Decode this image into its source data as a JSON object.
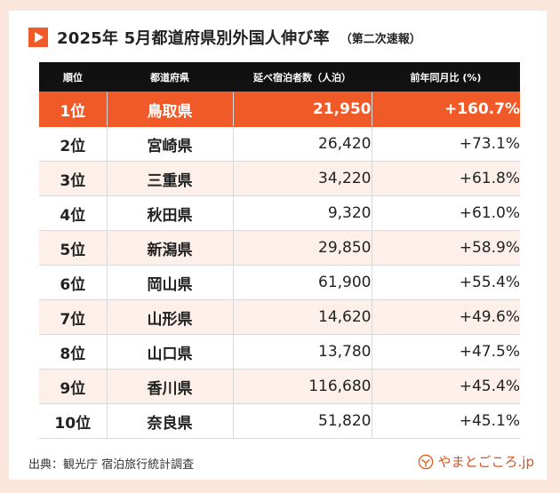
{
  "title": {
    "main": "2025年 5月都道府県別外国人伸び率",
    "sub": "（第二次速報）"
  },
  "table": {
    "headers": [
      "順位",
      "都道府県",
      "延べ宿泊者数（人泊）",
      "前年同月比 (%)"
    ],
    "rows": [
      {
        "rank": "1位",
        "pref": "鳥取県",
        "stays": "21,950",
        "yoy": "+160.7%"
      },
      {
        "rank": "2位",
        "pref": "宮崎県",
        "stays": "26,420",
        "yoy": "+73.1%"
      },
      {
        "rank": "3位",
        "pref": "三重県",
        "stays": "34,220",
        "yoy": "+61.8%"
      },
      {
        "rank": "4位",
        "pref": "秋田県",
        "stays": "9,320",
        "yoy": "+61.0%"
      },
      {
        "rank": "5位",
        "pref": "新潟県",
        "stays": "29,850",
        "yoy": "+58.9%"
      },
      {
        "rank": "6位",
        "pref": "岡山県",
        "stays": "61,900",
        "yoy": "+55.4%"
      },
      {
        "rank": "7位",
        "pref": "山形県",
        "stays": "14,620",
        "yoy": "+49.6%"
      },
      {
        "rank": "8位",
        "pref": "山口県",
        "stays": "13,780",
        "yoy": "+47.5%"
      },
      {
        "rank": "9位",
        "pref": "香川県",
        "stays": "116,680",
        "yoy": "+45.4%"
      },
      {
        "rank": "10位",
        "pref": "奈良県",
        "stays": "51,820",
        "yoy": "+45.1%"
      }
    ]
  },
  "source": "出典：観光庁 宿泊旅行統計調査",
  "brand": "やまとごころ.jp",
  "colors": {
    "accent": "#f05a28",
    "header_bg": "#111111",
    "row_tint": "#fdf0ea",
    "page_bg": "#fbe6dc"
  },
  "icons": {
    "title_marker": "play-triangle-icon",
    "brand_logo": "yamatogokoro-logo-icon"
  }
}
